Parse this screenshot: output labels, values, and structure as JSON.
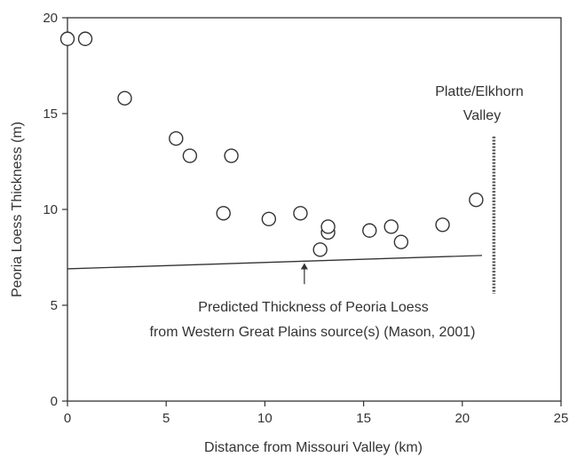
{
  "chart_data": {
    "type": "scatter",
    "title": "",
    "xlabel": "Distance from Missouri Valley (km)",
    "ylabel": "Peoria Loess Thickness (m)",
    "xlim": [
      0,
      25
    ],
    "ylim": [
      0,
      20
    ],
    "xticks": [
      0,
      5,
      10,
      15,
      20,
      25
    ],
    "yticks": [
      0,
      5,
      10,
      15,
      20
    ],
    "grid": false,
    "colors": {
      "axis": "#333333",
      "marker_stroke": "#333333",
      "marker_fill": "#ffffff",
      "valley_line": "#555555"
    },
    "points": [
      {
        "x": 0.0,
        "y": 18.9
      },
      {
        "x": 0.9,
        "y": 18.9
      },
      {
        "x": 2.9,
        "y": 15.8
      },
      {
        "x": 5.5,
        "y": 13.7
      },
      {
        "x": 6.2,
        "y": 12.8
      },
      {
        "x": 8.3,
        "y": 12.8
      },
      {
        "x": 7.9,
        "y": 9.8
      },
      {
        "x": 10.2,
        "y": 9.5
      },
      {
        "x": 11.8,
        "y": 9.8
      },
      {
        "x": 12.8,
        "y": 7.9
      },
      {
        "x": 13.2,
        "y": 8.8
      },
      {
        "x": 13.2,
        "y": 9.1
      },
      {
        "x": 15.3,
        "y": 8.9
      },
      {
        "x": 16.4,
        "y": 9.1
      },
      {
        "x": 16.9,
        "y": 8.3
      },
      {
        "x": 19.0,
        "y": 9.2
      },
      {
        "x": 20.7,
        "y": 10.5
      }
    ],
    "predicted_line": {
      "x": [
        0.0,
        21.0
      ],
      "y": [
        6.9,
        7.6
      ]
    },
    "valley_marker": {
      "x": 21.6,
      "y_range": [
        5.6,
        13.8
      ],
      "label_lines": [
        "Platte/Elkhorn",
        "Valley"
      ]
    },
    "annotation": {
      "lines": [
        "Predicted Thickness of Peoria Loess",
        "from Western Great Plains source(s) (Mason, 2001)"
      ],
      "arrow_x": 12.0,
      "arrow_from_y": 6.1,
      "arrow_to_y": 7.2
    }
  }
}
